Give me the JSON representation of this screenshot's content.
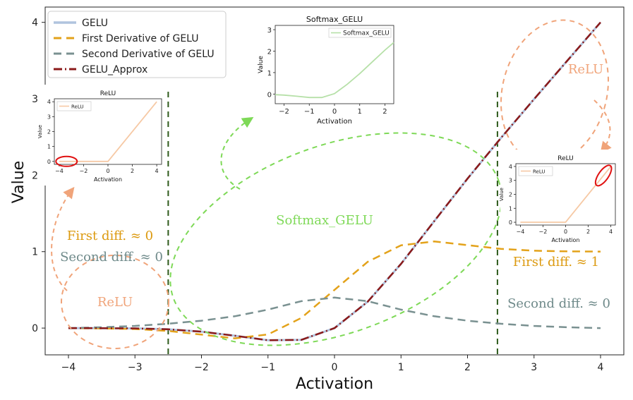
{
  "chart_data": {
    "type": "line",
    "xlabel": "Activation",
    "ylabel": "Value",
    "xlim": [
      -4.35,
      4.35
    ],
    "ylim": [
      -0.35,
      4.2
    ],
    "xticks": [
      "−4",
      "−3",
      "−2",
      "−1",
      "0",
      "1",
      "2",
      "3",
      "4"
    ],
    "xtick_values": [
      -4,
      -3,
      -2,
      -1,
      0,
      1,
      2,
      3,
      4
    ],
    "yticks": [
      "0",
      "1",
      "2",
      "3",
      "4"
    ],
    "ytick_values": [
      0,
      1,
      2,
      3,
      4
    ],
    "x": [
      -4,
      -3.5,
      -3,
      -2.5,
      -2,
      -1.5,
      -1,
      -0.5,
      0,
      0.5,
      1,
      1.5,
      2,
      2.5,
      3,
      3.5,
      4
    ],
    "series": [
      {
        "name": "GELU",
        "color": "#b0c4de",
        "style": "solid",
        "values": [
          0.0,
          -0.001,
          -0.004,
          -0.016,
          -0.046,
          -0.1,
          -0.159,
          -0.154,
          0.0,
          0.346,
          0.841,
          1.4,
          1.955,
          2.484,
          2.996,
          3.499,
          4.0
        ]
      },
      {
        "name": "First Derivative of GELU",
        "color": "#e3a21a",
        "style": "dashed",
        "values": [
          0.0,
          -0.004,
          -0.012,
          -0.037,
          -0.085,
          -0.134,
          -0.083,
          0.133,
          0.5,
          0.867,
          1.083,
          1.134,
          1.085,
          1.037,
          1.012,
          1.004,
          1.001
        ]
      },
      {
        "name": "Second Derivative of GELU",
        "color": "#7a9191",
        "style": "dashed",
        "values": [
          0.0,
          0.011,
          0.028,
          0.057,
          0.097,
          0.155,
          0.242,
          0.352,
          0.399,
          0.352,
          0.242,
          0.155,
          0.097,
          0.057,
          0.028,
          0.011,
          0.0
        ]
      },
      {
        "name": "GELU_Approx",
        "color": "#8b1a1a",
        "style": "dashdot",
        "values": [
          0.0,
          -0.001,
          -0.004,
          -0.016,
          -0.046,
          -0.1,
          -0.159,
          -0.154,
          0.0,
          0.346,
          0.841,
          1.4,
          1.955,
          2.484,
          2.996,
          3.499,
          4.0
        ]
      }
    ],
    "vlines": [
      -2.5,
      2.45
    ],
    "legend": "top-left",
    "annotations": {
      "first_diff_left": "First diff. ≈ 0",
      "second_diff_left": "Second diff. ≈ 0",
      "relu_left": "ReLU",
      "softmax_gelu": "Softmax_GELU",
      "first_diff_right": "First diff. ≈ 1",
      "second_diff_right": "Second diff. ≈ 0",
      "relu_right": "ReLU"
    },
    "insets": [
      {
        "title": "ReLU",
        "type": "line",
        "xlabel": "Activation",
        "ylabel": "Value",
        "xlim": [
          -4.4,
          4.4
        ],
        "ylim": [
          -0.2,
          4.2
        ],
        "xticks": [
          "−4",
          "−2",
          "0",
          "2",
          "4"
        ],
        "xtick_values": [
          -4,
          -2,
          0,
          2,
          4
        ],
        "yticks": [
          "0",
          "1",
          "2",
          "3",
          "4"
        ],
        "ytick_values": [
          0,
          1,
          2,
          3,
          4
        ],
        "x": [
          -4,
          0,
          4
        ],
        "values": [
          0,
          0,
          4
        ],
        "legend": "ReLU",
        "color": "#f6c9a5",
        "highlight": "lower-left"
      },
      {
        "title": "Softmax_GELU",
        "type": "line",
        "xlabel": "Activation",
        "ylabel": "Value",
        "xlim": [
          -2.35,
          2.35
        ],
        "ylim": [
          -0.45,
          3.2
        ],
        "xticks": [
          "−2",
          "−1",
          "0",
          "1",
          "2"
        ],
        "xtick_values": [
          -2,
          -1,
          0,
          1,
          2
        ],
        "yticks": [
          "0",
          "1",
          "2",
          "3"
        ],
        "ytick_values": [
          0,
          1,
          2,
          3
        ],
        "x": [
          -2.35,
          -2,
          -1.5,
          -1,
          -0.5,
          0,
          0.5,
          1,
          1.5,
          2,
          2.35
        ],
        "values": [
          -0.03,
          -0.05,
          -0.1,
          -0.16,
          -0.16,
          0.02,
          0.45,
          0.95,
          1.5,
          2.05,
          2.4
        ],
        "legend": "Softmax_GELU",
        "color": "#b6e0a8"
      },
      {
        "title": "ReLU",
        "type": "line",
        "xlabel": "Activation",
        "ylabel": "Value",
        "xlim": [
          -4.4,
          4.4
        ],
        "ylim": [
          -0.2,
          4.2
        ],
        "xticks": [
          "−4",
          "−2",
          "0",
          "2",
          "4"
        ],
        "xtick_values": [
          -4,
          -2,
          0,
          2,
          4
        ],
        "yticks": [
          "0",
          "1",
          "2",
          "3",
          "4"
        ],
        "ytick_values": [
          0,
          1,
          2,
          3,
          4
        ],
        "x": [
          -4,
          0,
          4
        ],
        "values": [
          0,
          0,
          4
        ],
        "legend": "ReLU",
        "color": "#f6c9a5",
        "highlight": "upper-right"
      }
    ]
  },
  "colors": {
    "relu_annotation": "#f0a47a",
    "softmax_annotation": "#7ed957",
    "first_diff": "#dc9a10",
    "second_diff": "#6f8a8a",
    "vline": "#2d5a1b",
    "highlight": "#e01010"
  }
}
